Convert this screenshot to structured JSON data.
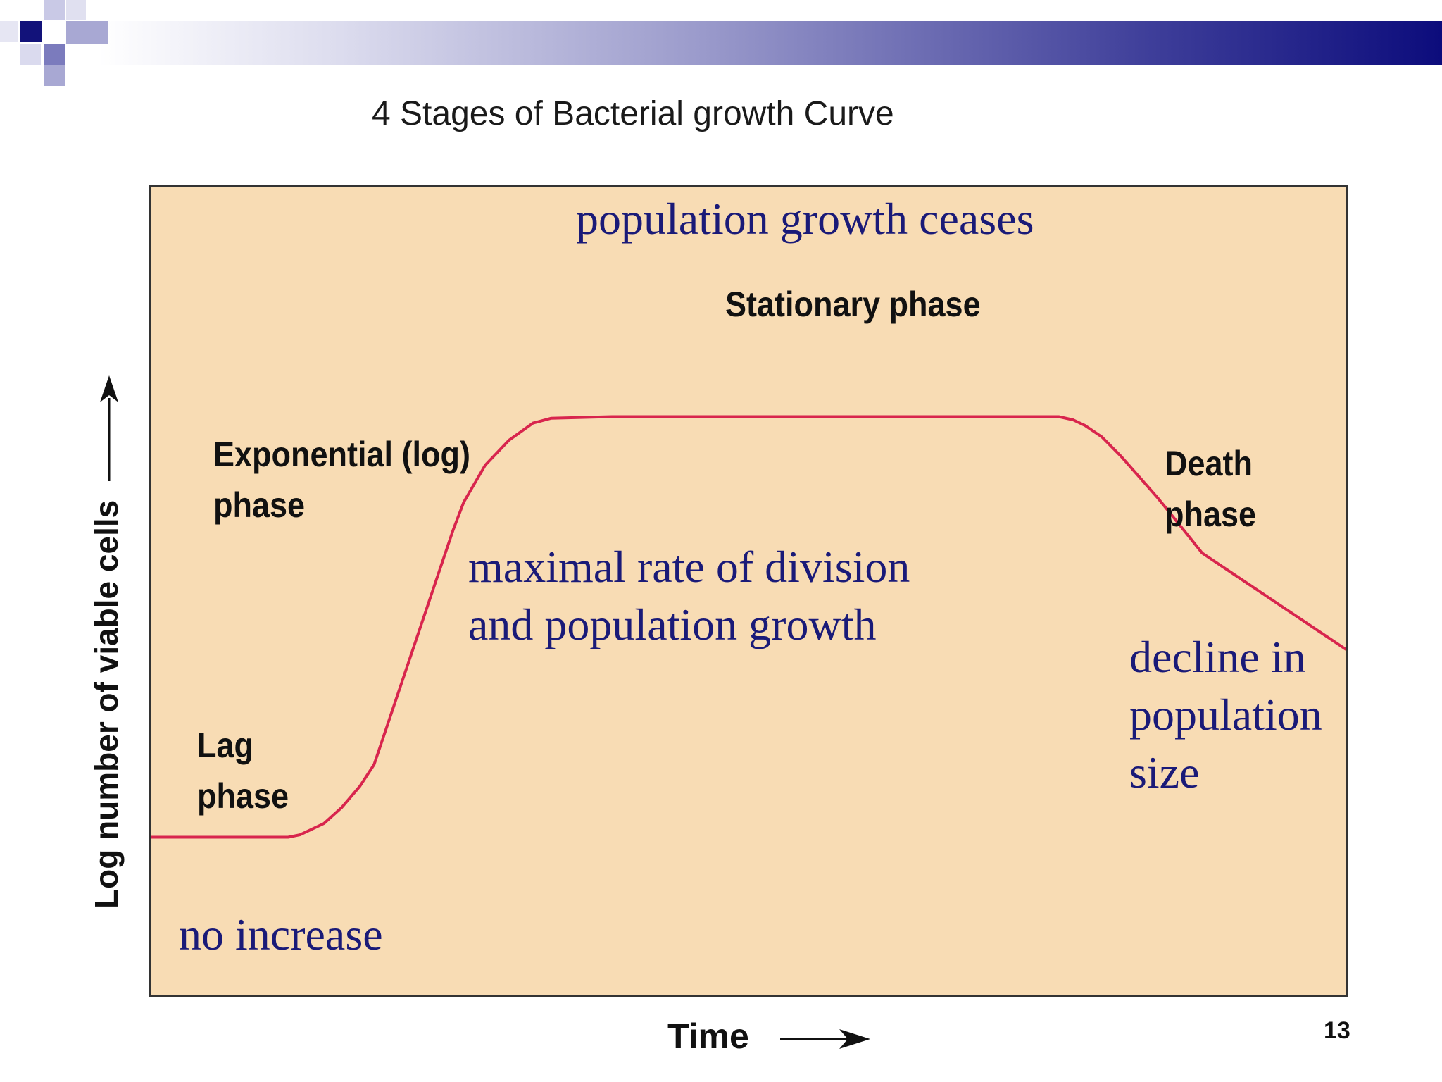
{
  "slide": {
    "title": "4 Stages of Bacterial growth Curve",
    "page_number": "13",
    "accent_color": "#1a1a78",
    "curve_color": "#d8254d",
    "panel_color": "#f8dcb4"
  },
  "chart_data": {
    "type": "line",
    "title": "4 Stages of Bacterial growth Curve",
    "xlabel": "Time",
    "ylabel": "Log number of viable cells",
    "xlim": [
      0,
      100
    ],
    "ylim": [
      0,
      100
    ],
    "axis_ticks": false,
    "grid": false,
    "series": [
      {
        "x": [
          0,
          11.5,
          12.5,
          14.5,
          16,
          17.5,
          18.7,
          25.3,
          26.2,
          28,
          30,
          32,
          33.5,
          38.6,
          76,
          77.2,
          78.2,
          79.6,
          81.2,
          82.7,
          84.3,
          86,
          88,
          100
        ],
        "y": [
          19.5,
          19.5,
          19.8,
          21.2,
          23.2,
          25.8,
          28.5,
          57.5,
          61,
          65.6,
          68.7,
          70.8,
          71.4,
          71.6,
          71.6,
          71.2,
          70.5,
          69.1,
          66.7,
          64.2,
          61.5,
          58.4,
          54.7,
          42.8
        ]
      }
    ],
    "phase_labels": [
      {
        "line1": "Lag",
        "line2": "phase"
      },
      {
        "line1": "Exponential (log)",
        "line2": "phase"
      },
      {
        "line1": "Stationary phase"
      },
      {
        "line1": "Death",
        "line2": "phase"
      }
    ],
    "annotations": [
      {
        "lines": [
          "no increase"
        ]
      },
      {
        "lines": [
          "maximal rate of division",
          "and population growth"
        ]
      },
      {
        "lines": [
          "population growth ceases"
        ]
      },
      {
        "lines": [
          "decline in",
          "population",
          "size"
        ]
      }
    ]
  }
}
